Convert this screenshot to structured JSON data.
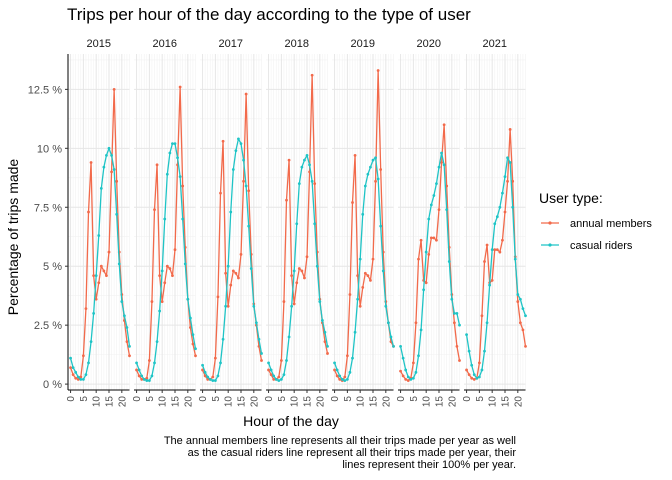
{
  "chart_data": {
    "type": "line",
    "title": "Trips per hour of the day according to the type of user",
    "xlabel": "Hour of the day",
    "ylabel": "Percentage of trips made",
    "facets": [
      "2015",
      "2016",
      "2017",
      "2018",
      "2019",
      "2020",
      "2021"
    ],
    "x_ticks": [
      "0",
      "5",
      "10",
      "15",
      "20"
    ],
    "y_ticks": [
      "0 %",
      "2.5 %",
      "5 %",
      "7.5 %",
      "10 %",
      "12.5 %"
    ],
    "y_tick_values": [
      0,
      2.5,
      5,
      7.5,
      10,
      12.5
    ],
    "xlim": [
      -1,
      23
    ],
    "ylim": [
      -0.25,
      14
    ],
    "grid": true,
    "legend_position": "right",
    "legend_title": "User type:",
    "series_meta": [
      {
        "key": "annual",
        "name": "annual members",
        "color": "#f26a4b"
      },
      {
        "key": "casual",
        "name": "casual riders",
        "color": "#1fc4c6"
      }
    ],
    "x": [
      0,
      1,
      2,
      3,
      4,
      5,
      6,
      7,
      8,
      9,
      10,
      11,
      12,
      13,
      14,
      15,
      16,
      17,
      18,
      19,
      20,
      21,
      22,
      23
    ],
    "panels": [
      {
        "facet": "2015",
        "annual": [
          0.7,
          0.4,
          0.25,
          0.2,
          0.3,
          1.2,
          3.2,
          7.3,
          9.4,
          4.6,
          3.6,
          4.3,
          5.0,
          4.8,
          4.6,
          5.6,
          9.0,
          12.5,
          8.6,
          5.6,
          3.8,
          2.7,
          1.8,
          1.2
        ],
        "casual": [
          1.1,
          0.7,
          0.5,
          0.3,
          0.2,
          0.2,
          0.4,
          0.9,
          1.8,
          3.0,
          4.6,
          6.3,
          8.3,
          9.2,
          9.7,
          10.0,
          9.7,
          9.1,
          7.2,
          5.1,
          3.5,
          2.9,
          2.4,
          1.6
        ]
      },
      {
        "facet": "2016",
        "annual": [
          0.6,
          0.35,
          0.2,
          0.2,
          0.25,
          1.0,
          3.5,
          7.4,
          9.3,
          4.6,
          3.5,
          4.3,
          5.0,
          4.9,
          4.6,
          5.7,
          9.3,
          12.6,
          8.4,
          5.8,
          3.6,
          2.4,
          1.7,
          1.2
        ],
        "casual": [
          0.9,
          0.6,
          0.35,
          0.2,
          0.15,
          0.15,
          0.35,
          0.9,
          1.8,
          3.1,
          4.8,
          7.0,
          8.9,
          9.8,
          10.2,
          10.2,
          9.6,
          8.8,
          7.0,
          5.1,
          3.6,
          2.8,
          2.1,
          1.5
        ]
      },
      {
        "facet": "2017",
        "annual": [
          0.6,
          0.35,
          0.2,
          0.2,
          0.3,
          1.1,
          3.7,
          8.1,
          10.3,
          4.7,
          3.3,
          4.2,
          4.8,
          4.7,
          4.5,
          5.5,
          8.6,
          12.3,
          8.2,
          5.5,
          3.4,
          2.5,
          1.6,
          1.0
        ],
        "casual": [
          0.8,
          0.5,
          0.3,
          0.2,
          0.15,
          0.15,
          0.35,
          0.9,
          1.9,
          3.3,
          5.0,
          7.3,
          9.1,
          9.9,
          10.4,
          10.2,
          9.5,
          8.4,
          6.7,
          4.9,
          3.3,
          2.6,
          1.9,
          1.3
        ]
      },
      {
        "facet": "2018",
        "annual": [
          0.6,
          0.4,
          0.2,
          0.2,
          0.3,
          1.0,
          3.5,
          7.8,
          9.5,
          4.6,
          3.4,
          4.3,
          4.9,
          4.8,
          4.5,
          5.4,
          9.0,
          13.1,
          8.5,
          5.6,
          3.6,
          2.6,
          1.8,
          1.3
        ],
        "casual": [
          0.9,
          0.6,
          0.35,
          0.2,
          0.15,
          0.2,
          0.4,
          1.0,
          2.0,
          3.3,
          4.8,
          6.8,
          8.5,
          9.2,
          9.5,
          9.7,
          9.3,
          8.6,
          6.8,
          5.0,
          3.5,
          2.7,
          2.2,
          1.6
        ]
      },
      {
        "facet": "2019",
        "annual": [
          0.6,
          0.35,
          0.2,
          0.15,
          0.3,
          1.2,
          3.8,
          7.7,
          9.7,
          4.6,
          3.3,
          4.1,
          4.7,
          4.6,
          4.4,
          5.3,
          8.6,
          13.3,
          9.1,
          5.6,
          3.5,
          2.6,
          1.8,
          1.6
        ],
        "casual": [
          0.9,
          0.6,
          0.35,
          0.2,
          0.15,
          0.2,
          0.5,
          1.1,
          2.2,
          3.6,
          5.3,
          7.2,
          8.4,
          8.9,
          9.2,
          9.5,
          9.6,
          8.7,
          6.7,
          4.8,
          3.3,
          2.6,
          2.0,
          1.6
        ]
      },
      {
        "facet": "2020",
        "annual": [
          0.55,
          0.35,
          0.2,
          0.15,
          0.25,
          0.9,
          2.6,
          5.3,
          6.1,
          4.4,
          4.3,
          5.5,
          6.2,
          6.2,
          6.1,
          7.4,
          9.4,
          11.0,
          8.4,
          5.8,
          3.8,
          2.6,
          1.6,
          1.0
        ],
        "casual": [
          1.6,
          1.1,
          0.6,
          0.3,
          0.2,
          0.25,
          0.5,
          1.2,
          2.3,
          4.0,
          5.6,
          7.0,
          7.6,
          8.0,
          8.5,
          9.2,
          9.8,
          9.3,
          7.4,
          5.2,
          3.6,
          3.0,
          3.0,
          2.5
        ]
      },
      {
        "facet": "2021",
        "annual": [
          0.6,
          0.4,
          0.25,
          0.2,
          0.25,
          0.9,
          2.9,
          5.2,
          5.9,
          4.3,
          4.4,
          5.7,
          5.7,
          5.6,
          6.1,
          7.3,
          8.6,
          10.8,
          8.6,
          5.4,
          3.5,
          2.6,
          2.3,
          1.6
        ],
        "casual": [
          2.1,
          1.4,
          0.8,
          0.4,
          0.25,
          0.3,
          0.6,
          1.4,
          2.6,
          4.2,
          5.7,
          6.8,
          7.1,
          7.5,
          8.1,
          8.8,
          9.6,
          9.4,
          7.5,
          5.3,
          3.8,
          3.6,
          3.2,
          2.9
        ]
      }
    ]
  },
  "caption": [
    "The annual members line represents all their trips made per year as well",
    "as the casual riders line represent all their trips made per year, their",
    "lines represent their 100% per year."
  ]
}
